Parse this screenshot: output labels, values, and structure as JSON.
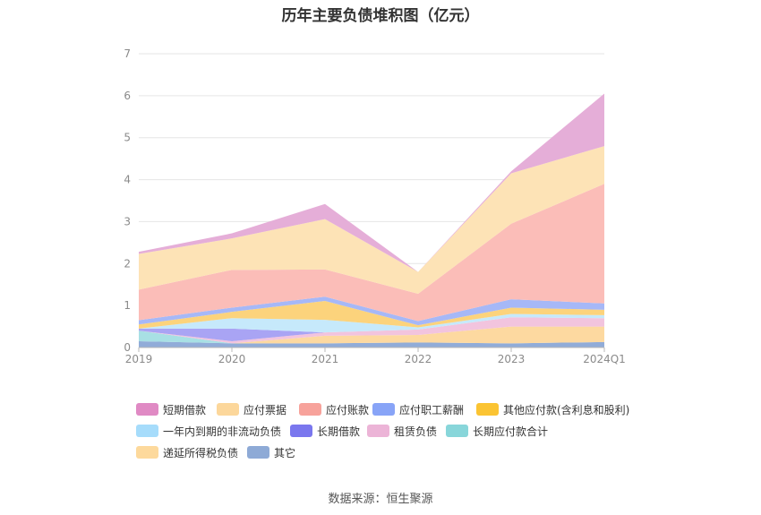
{
  "title": "历年主要负债堆积图（亿元）",
  "source_note": "数据来源：恒生聚源",
  "chart_data": {
    "type": "area",
    "stacked": true,
    "categories": [
      "2019",
      "2020",
      "2021",
      "2022",
      "2023",
      "2024Q1"
    ],
    "yticks": [
      "0",
      "1",
      "2",
      "3",
      "4",
      "5",
      "6",
      "7"
    ],
    "ylim": [
      0,
      7
    ],
    "grid": true,
    "legend_position": "bottom",
    "series": [
      {
        "name": "其它",
        "color": "#91acd8",
        "values": [
          0.15,
          0.1,
          0.1,
          0.12,
          0.1,
          0.13
        ]
      },
      {
        "name": "递延所得税负债",
        "color": "#fdd9a0",
        "values": [
          0.0,
          0.0,
          0.18,
          0.18,
          0.4,
          0.37
        ]
      },
      {
        "name": "长期应付款合计",
        "color": "#a8e0e4",
        "values": [
          0.25,
          0.0,
          0.0,
          0.0,
          0.0,
          0.0
        ]
      },
      {
        "name": "租赁负债",
        "color": "#f2c4de",
        "values": [
          0.0,
          0.05,
          0.08,
          0.13,
          0.22,
          0.2
        ]
      },
      {
        "name": "长期借款",
        "color": "#a9a4f4",
        "values": [
          0.05,
          0.3,
          0.0,
          0.0,
          0.0,
          0.0
        ]
      },
      {
        "name": "一年内到期的非流动负债",
        "color": "#c6e9fb",
        "values": [
          0.0,
          0.25,
          0.3,
          0.05,
          0.08,
          0.07
        ]
      },
      {
        "name": "其他应付款(含利息和股利)",
        "color": "#fcd37c",
        "values": [
          0.1,
          0.15,
          0.45,
          0.05,
          0.15,
          0.13
        ]
      },
      {
        "name": "应付职工薪酬",
        "color": "#a6b8f7",
        "values": [
          0.1,
          0.1,
          0.1,
          0.1,
          0.2,
          0.15
        ]
      },
      {
        "name": "应付账款",
        "color": "#fbbdb8",
        "values": [
          0.73,
          0.9,
          0.65,
          0.65,
          1.8,
          2.85
        ]
      },
      {
        "name": "应付票据",
        "color": "#fde3b6",
        "values": [
          0.85,
          0.75,
          1.2,
          0.52,
          1.2,
          0.9
        ]
      },
      {
        "name": "短期借款",
        "color": "#e5aed8",
        "values": [
          0.05,
          0.12,
          0.36,
          0.0,
          0.05,
          1.25
        ]
      }
    ],
    "legend": [
      {
        "name": "短期借款",
        "color": "#e08ac4"
      },
      {
        "name": "应付票据",
        "color": "#fcd79b"
      },
      {
        "name": "应付账款",
        "color": "#f7a29b"
      },
      {
        "name": "应付职工薪酬",
        "color": "#88a4f7"
      },
      {
        "name": "其他应付款(含利息和股利)",
        "color": "#fbc433"
      },
      {
        "name": "一年内到期的非流动负债",
        "color": "#a6dcfb"
      },
      {
        "name": "长期借款",
        "color": "#7a77ee"
      },
      {
        "name": "租赁负债",
        "color": "#ecb4d7"
      },
      {
        "name": "长期应付款合计",
        "color": "#88d6da"
      },
      {
        "name": "递延所得税负债",
        "color": "#fdd99c"
      },
      {
        "name": "其它",
        "color": "#8eaad6"
      }
    ]
  }
}
